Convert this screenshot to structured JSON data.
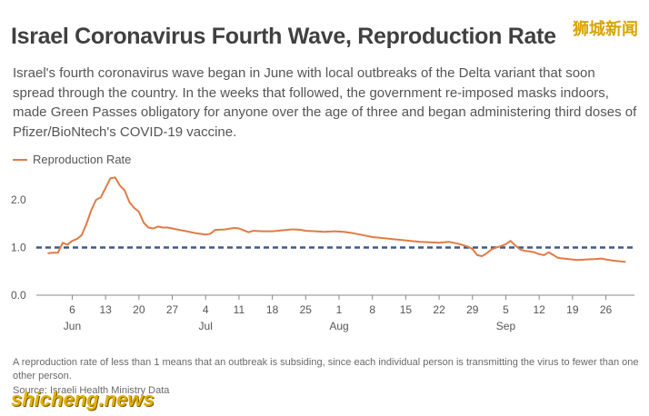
{
  "header": {
    "title": "Israel Coronavirus Fourth Wave, Reproduction Rate",
    "subtitle": "Israel's fourth coronavirus wave began in June with local outbreaks of the Delta variant that soon spread through the country. In the weeks that followed, the government re-imposed masks indoors, made Green Passes obligatory for anyone over the age of three and began administering third doses of Pfizer/BioNtech's COVID-19 vaccine."
  },
  "footer": {
    "footnote": "A reproduction rate of less than 1 means that an outbreak is subsiding, since each individual person is transmitting the virus to fewer than one other person.",
    "source": "Source: Israeli Health Ministry Data"
  },
  "watermark": {
    "top": "狮城新闻",
    "bottom": "shicheng.news"
  },
  "colors": {
    "series": "#e07b45",
    "threshold": "#3e5a87",
    "axis": "#888888",
    "text": "#555555"
  },
  "chart_data": {
    "type": "line",
    "title": "Israel Coronavirus Fourth Wave, Reproduction Rate",
    "ylim": [
      0,
      2.7
    ],
    "yticks": [
      "0.0",
      "1.0",
      "2.0"
    ],
    "ytick_values": [
      0,
      1,
      2
    ],
    "threshold": 1.0,
    "x_day_ticks": [
      {
        "day": 6,
        "label": "6"
      },
      {
        "day": 13,
        "label": "13"
      },
      {
        "day": 20,
        "label": "20"
      },
      {
        "day": 27,
        "label": "27"
      },
      {
        "day": 34,
        "label": "4"
      },
      {
        "day": 41,
        "label": "11"
      },
      {
        "day": 48,
        "label": "18"
      },
      {
        "day": 55,
        "label": "25"
      },
      {
        "day": 62,
        "label": "1"
      },
      {
        "day": 69,
        "label": "8"
      },
      {
        "day": 76,
        "label": "15"
      },
      {
        "day": 83,
        "label": "22"
      },
      {
        "day": 90,
        "label": "29"
      },
      {
        "day": 97,
        "label": "5"
      },
      {
        "day": 104,
        "label": "12"
      },
      {
        "day": 111,
        "label": "19"
      },
      {
        "day": 118,
        "label": "26"
      }
    ],
    "month_labels": [
      {
        "day": 6,
        "label": "Jun"
      },
      {
        "day": 34,
        "label": "Jul"
      },
      {
        "day": 62,
        "label": "Aug"
      },
      {
        "day": 97,
        "label": "Sep"
      }
    ],
    "series": [
      {
        "name": "Reproduction Rate",
        "x": [
          1,
          2,
          3,
          4,
          5,
          6,
          7,
          8,
          9,
          10,
          11,
          12,
          13,
          14,
          15,
          16,
          17,
          18,
          19,
          20,
          21,
          22,
          23,
          24,
          25,
          26,
          27,
          28,
          30,
          32,
          34,
          35,
          36,
          38,
          40,
          41,
          42,
          43,
          44,
          46,
          48,
          50,
          52,
          53,
          54,
          55,
          57,
          59,
          61,
          63,
          65,
          67,
          69,
          71,
          73,
          75,
          77,
          79,
          81,
          83,
          85,
          87,
          89,
          90,
          91,
          92,
          93,
          94,
          95,
          96,
          97,
          98,
          99,
          100,
          101,
          102,
          103,
          104,
          105,
          106,
          107,
          108,
          110,
          112,
          114,
          116,
          117,
          118,
          120,
          122
        ],
        "values": [
          0.88,
          0.89,
          0.89,
          1.1,
          1.06,
          1.14,
          1.18,
          1.26,
          1.5,
          1.78,
          2.0,
          2.05,
          2.25,
          2.45,
          2.47,
          2.3,
          2.2,
          1.95,
          1.83,
          1.75,
          1.52,
          1.42,
          1.4,
          1.44,
          1.42,
          1.42,
          1.4,
          1.38,
          1.34,
          1.3,
          1.27,
          1.29,
          1.37,
          1.38,
          1.41,
          1.4,
          1.36,
          1.32,
          1.35,
          1.34,
          1.34,
          1.36,
          1.38,
          1.38,
          1.37,
          1.35,
          1.34,
          1.33,
          1.34,
          1.33,
          1.3,
          1.26,
          1.22,
          1.2,
          1.18,
          1.16,
          1.14,
          1.12,
          1.11,
          1.1,
          1.12,
          1.08,
          1.02,
          0.97,
          0.84,
          0.82,
          0.88,
          0.96,
          1.0,
          1.03,
          1.07,
          1.14,
          1.04,
          0.96,
          0.93,
          0.92,
          0.9,
          0.86,
          0.84,
          0.9,
          0.84,
          0.78,
          0.76,
          0.74,
          0.75,
          0.76,
          0.77,
          0.75,
          0.72,
          0.7
        ]
      }
    ]
  }
}
